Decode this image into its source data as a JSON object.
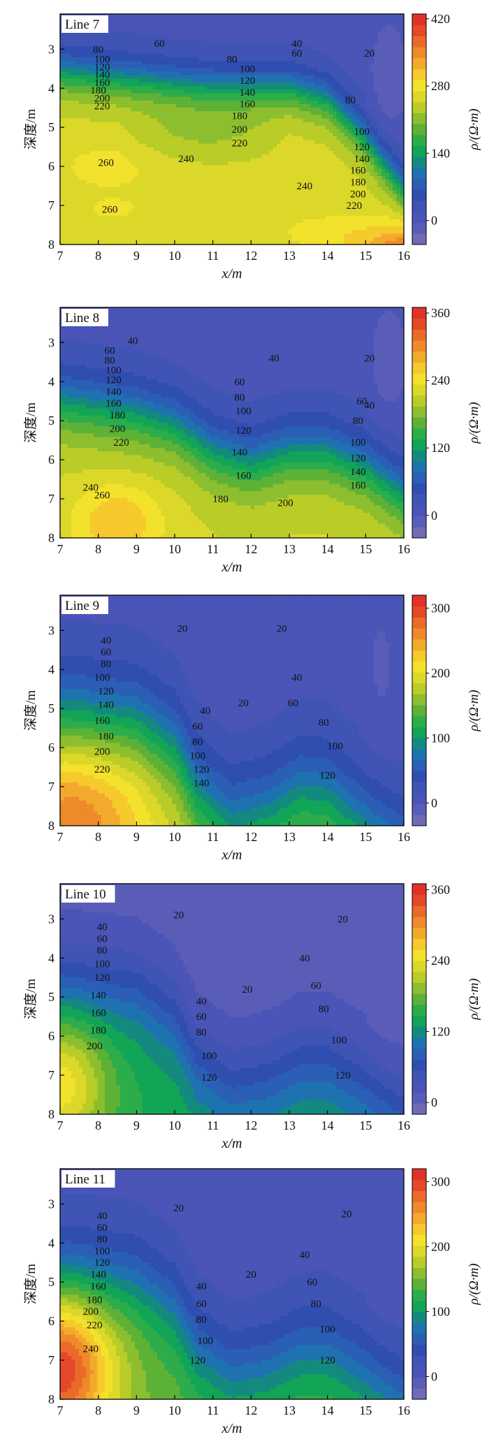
{
  "figure": {
    "colorscale": [
      "#6f6bb6",
      "#5a5db8",
      "#4a55b7",
      "#3f54b4",
      "#2f4eb0",
      "#2a5fb5",
      "#1f72b0",
      "#148a7f",
      "#12a457",
      "#2dac4b",
      "#5db236",
      "#8dbe2f",
      "#b9cc28",
      "#dcd82a",
      "#f3e22c",
      "#f6c92c",
      "#f3aa2c",
      "#ef8a2b",
      "#eb6a2a",
      "#e6482a",
      "#e03228"
    ]
  },
  "chart_data": [
    {
      "type": "contour",
      "title": "Line 7",
      "xlabel": "x/m",
      "ylabel": "深度/m",
      "colorbar_label": "ρ/(Ω·m)",
      "xlim": [
        7,
        16
      ],
      "ylim": [
        8,
        2.1
      ],
      "xticks": [
        "7",
        "8",
        "9",
        "10",
        "11",
        "12",
        "13",
        "14",
        "15",
        "16"
      ],
      "yticks": [
        "3",
        "4",
        "5",
        "6",
        "7",
        "8"
      ],
      "zrange": [
        -50,
        430
      ],
      "colorbar_ticks": [
        {
          "label": "0",
          "value": 0
        },
        {
          "label": "140",
          "value": 140
        },
        {
          "label": "280",
          "value": 280
        },
        {
          "label": "420",
          "value": 420
        }
      ],
      "contour_labels": [
        {
          "text": "80",
          "x": 8.0,
          "y": 3.0
        },
        {
          "text": "100",
          "x": 8.1,
          "y": 3.25
        },
        {
          "text": "120",
          "x": 8.1,
          "y": 3.45
        },
        {
          "text": "140",
          "x": 8.1,
          "y": 3.65
        },
        {
          "text": "160",
          "x": 8.1,
          "y": 3.85
        },
        {
          "text": "180",
          "x": 8.0,
          "y": 4.05
        },
        {
          "text": "200",
          "x": 8.1,
          "y": 4.25
        },
        {
          "text": "220",
          "x": 8.1,
          "y": 4.45
        },
        {
          "text": "60",
          "x": 9.6,
          "y": 2.85
        },
        {
          "text": "80",
          "x": 11.5,
          "y": 3.25
        },
        {
          "text": "100",
          "x": 11.9,
          "y": 3.5
        },
        {
          "text": "120",
          "x": 11.9,
          "y": 3.8
        },
        {
          "text": "140",
          "x": 11.9,
          "y": 4.1
        },
        {
          "text": "160",
          "x": 11.9,
          "y": 4.4
        },
        {
          "text": "180",
          "x": 11.7,
          "y": 4.7
        },
        {
          "text": "200",
          "x": 11.7,
          "y": 5.05
        },
        {
          "text": "220",
          "x": 11.7,
          "y": 5.4
        },
        {
          "text": "40",
          "x": 13.2,
          "y": 2.85
        },
        {
          "text": "60",
          "x": 13.2,
          "y": 3.1
        },
        {
          "text": "20",
          "x": 15.1,
          "y": 3.1
        },
        {
          "text": "80",
          "x": 14.6,
          "y": 4.3
        },
        {
          "text": "100",
          "x": 14.9,
          "y": 5.1
        },
        {
          "text": "120",
          "x": 14.9,
          "y": 5.5
        },
        {
          "text": "140",
          "x": 14.9,
          "y": 5.8
        },
        {
          "text": "160",
          "x": 14.8,
          "y": 6.1
        },
        {
          "text": "180",
          "x": 14.8,
          "y": 6.4
        },
        {
          "text": "200",
          "x": 14.8,
          "y": 6.7
        },
        {
          "text": "220",
          "x": 14.7,
          "y": 7.0
        },
        {
          "text": "260",
          "x": 8.2,
          "y": 5.9
        },
        {
          "text": "240",
          "x": 10.3,
          "y": 5.8
        },
        {
          "text": "240",
          "x": 13.4,
          "y": 6.5
        },
        {
          "text": "260",
          "x": 8.3,
          "y": 7.1
        }
      ]
    },
    {
      "type": "contour",
      "title": "Line 8",
      "xlabel": "x/m",
      "ylabel": "深度/m",
      "colorbar_label": "ρ/(Ω·m)",
      "xlim": [
        7,
        16
      ],
      "ylim": [
        8,
        2.1
      ],
      "xticks": [
        "7",
        "8",
        "9",
        "10",
        "11",
        "12",
        "13",
        "14",
        "15",
        "16"
      ],
      "yticks": [
        "3",
        "4",
        "5",
        "6",
        "7",
        "8"
      ],
      "zrange": [
        -40,
        370
      ],
      "colorbar_ticks": [
        {
          "label": "0",
          "value": 0
        },
        {
          "label": "120",
          "value": 120
        },
        {
          "label": "240",
          "value": 240
        },
        {
          "label": "360",
          "value": 360
        }
      ],
      "contour_labels": [
        {
          "text": "40",
          "x": 8.9,
          "y": 2.95
        },
        {
          "text": "60",
          "x": 8.3,
          "y": 3.2
        },
        {
          "text": "80",
          "x": 8.3,
          "y": 3.45
        },
        {
          "text": "100",
          "x": 8.4,
          "y": 3.7
        },
        {
          "text": "120",
          "x": 8.4,
          "y": 3.95
        },
        {
          "text": "140",
          "x": 8.4,
          "y": 4.25
        },
        {
          "text": "160",
          "x": 8.4,
          "y": 4.55
        },
        {
          "text": "180",
          "x": 8.5,
          "y": 4.85
        },
        {
          "text": "200",
          "x": 8.5,
          "y": 5.2
        },
        {
          "text": "220",
          "x": 8.6,
          "y": 5.55
        },
        {
          "text": "240",
          "x": 7.8,
          "y": 6.7
        },
        {
          "text": "260",
          "x": 8.1,
          "y": 6.9
        },
        {
          "text": "40",
          "x": 12.6,
          "y": 3.4
        },
        {
          "text": "60",
          "x": 11.7,
          "y": 4.0
        },
        {
          "text": "80",
          "x": 11.7,
          "y": 4.4
        },
        {
          "text": "100",
          "x": 11.8,
          "y": 4.75
        },
        {
          "text": "120",
          "x": 11.8,
          "y": 5.25
        },
        {
          "text": "140",
          "x": 11.7,
          "y": 5.8
        },
        {
          "text": "160",
          "x": 11.8,
          "y": 6.4
        },
        {
          "text": "180",
          "x": 11.2,
          "y": 7.0
        },
        {
          "text": "200",
          "x": 12.9,
          "y": 7.1
        },
        {
          "text": "20",
          "x": 15.1,
          "y": 3.4
        },
        {
          "text": "60",
          "x": 14.9,
          "y": 4.5
        },
        {
          "text": "40",
          "x": 15.1,
          "y": 4.6
        },
        {
          "text": "80",
          "x": 14.8,
          "y": 5.0
        },
        {
          "text": "100",
          "x": 14.8,
          "y": 5.55
        },
        {
          "text": "120",
          "x": 14.8,
          "y": 5.95
        },
        {
          "text": "140",
          "x": 14.8,
          "y": 6.3
        },
        {
          "text": "160",
          "x": 14.8,
          "y": 6.65
        }
      ]
    },
    {
      "type": "contour",
      "title": "Line 9",
      "xlabel": "x/m",
      "ylabel": "深度/m",
      "colorbar_label": "ρ/(Ω·m)",
      "xlim": [
        7,
        16
      ],
      "ylim": [
        8,
        2.1
      ],
      "xticks": [
        "7",
        "8",
        "9",
        "10",
        "11",
        "12",
        "13",
        "14",
        "15",
        "16"
      ],
      "yticks": [
        "3",
        "4",
        "5",
        "6",
        "7",
        "8"
      ],
      "zrange": [
        -35,
        320
      ],
      "colorbar_ticks": [
        {
          "label": "0",
          "value": 0
        },
        {
          "label": "100",
          "value": 100
        },
        {
          "label": "200",
          "value": 200
        },
        {
          "label": "300",
          "value": 300
        }
      ],
      "contour_labels": [
        {
          "text": "40",
          "x": 8.2,
          "y": 3.25
        },
        {
          "text": "60",
          "x": 8.2,
          "y": 3.55
        },
        {
          "text": "80",
          "x": 8.2,
          "y": 3.85
        },
        {
          "text": "100",
          "x": 8.1,
          "y": 4.2
        },
        {
          "text": "120",
          "x": 8.2,
          "y": 4.55
        },
        {
          "text": "140",
          "x": 8.2,
          "y": 4.9
        },
        {
          "text": "160",
          "x": 8.1,
          "y": 5.3
        },
        {
          "text": "180",
          "x": 8.2,
          "y": 5.7
        },
        {
          "text": "200",
          "x": 8.1,
          "y": 6.1
        },
        {
          "text": "220",
          "x": 8.1,
          "y": 6.55
        },
        {
          "text": "20",
          "x": 10.2,
          "y": 2.95
        },
        {
          "text": "20",
          "x": 12.8,
          "y": 2.95
        },
        {
          "text": "40",
          "x": 10.8,
          "y": 5.05
        },
        {
          "text": "60",
          "x": 10.6,
          "y": 5.45
        },
        {
          "text": "80",
          "x": 10.6,
          "y": 5.85
        },
        {
          "text": "100",
          "x": 10.6,
          "y": 6.2
        },
        {
          "text": "120",
          "x": 10.7,
          "y": 6.55
        },
        {
          "text": "140",
          "x": 10.7,
          "y": 6.9
        },
        {
          "text": "20",
          "x": 11.8,
          "y": 4.85
        },
        {
          "text": "40",
          "x": 13.2,
          "y": 4.2
        },
        {
          "text": "60",
          "x": 13.1,
          "y": 4.85
        },
        {
          "text": "80",
          "x": 13.9,
          "y": 5.35
        },
        {
          "text": "100",
          "x": 14.2,
          "y": 5.95
        },
        {
          "text": "120",
          "x": 14.0,
          "y": 6.7
        }
      ]
    },
    {
      "type": "contour",
      "title": "Line 10",
      "xlabel": "x/m",
      "ylabel": "深度/m",
      "colorbar_label": "ρ/(Ω·m)",
      "xlim": [
        7,
        16
      ],
      "ylim": [
        8,
        2.1
      ],
      "xticks": [
        "7",
        "8",
        "9",
        "10",
        "11",
        "12",
        "13",
        "14",
        "15",
        "16"
      ],
      "yticks": [
        "3",
        "4",
        "5",
        "6",
        "7",
        "8"
      ],
      "zrange": [
        -20,
        370
      ],
      "colorbar_ticks": [
        {
          "label": "0",
          "value": 0
        },
        {
          "label": "120",
          "value": 120
        },
        {
          "label": "240",
          "value": 240
        },
        {
          "label": "360",
          "value": 360
        }
      ],
      "contour_labels": [
        {
          "text": "40",
          "x": 8.1,
          "y": 3.2
        },
        {
          "text": "60",
          "x": 8.1,
          "y": 3.5
        },
        {
          "text": "80",
          "x": 8.1,
          "y": 3.8
        },
        {
          "text": "100",
          "x": 8.1,
          "y": 4.15
        },
        {
          "text": "120",
          "x": 8.1,
          "y": 4.5
        },
        {
          "text": "140",
          "x": 8.0,
          "y": 4.95
        },
        {
          "text": "160",
          "x": 8.0,
          "y": 5.4
        },
        {
          "text": "180",
          "x": 8.0,
          "y": 5.85
        },
        {
          "text": "200",
          "x": 7.9,
          "y": 6.25
        },
        {
          "text": "20",
          "x": 10.1,
          "y": 2.9
        },
        {
          "text": "20",
          "x": 14.4,
          "y": 3.0
        },
        {
          "text": "40",
          "x": 10.7,
          "y": 5.1
        },
        {
          "text": "60",
          "x": 10.7,
          "y": 5.5
        },
        {
          "text": "80",
          "x": 10.7,
          "y": 5.9
        },
        {
          "text": "100",
          "x": 10.9,
          "y": 6.5
        },
        {
          "text": "120",
          "x": 10.9,
          "y": 7.05
        },
        {
          "text": "20",
          "x": 11.9,
          "y": 4.8
        },
        {
          "text": "40",
          "x": 13.4,
          "y": 4.0
        },
        {
          "text": "60",
          "x": 13.7,
          "y": 4.7
        },
        {
          "text": "80",
          "x": 13.9,
          "y": 5.3
        },
        {
          "text": "100",
          "x": 14.3,
          "y": 6.1
        },
        {
          "text": "120",
          "x": 14.4,
          "y": 7.0
        }
      ]
    },
    {
      "type": "contour",
      "title": "Line 11",
      "xlabel": "x/m",
      "ylabel": "深度/m",
      "colorbar_label": "ρ/(Ω·m)",
      "xlim": [
        7,
        16
      ],
      "ylim": [
        8,
        2.1
      ],
      "xticks": [
        "7",
        "8",
        "9",
        "10",
        "11",
        "12",
        "13",
        "14",
        "15",
        "16"
      ],
      "yticks": [
        "3",
        "4",
        "5",
        "6",
        "7",
        "8"
      ],
      "zrange": [
        -35,
        320
      ],
      "colorbar_ticks": [
        {
          "label": "0",
          "value": 0
        },
        {
          "label": "100",
          "value": 100
        },
        {
          "label": "200",
          "value": 200
        },
        {
          "label": "300",
          "value": 300
        }
      ],
      "contour_labels": [
        {
          "text": "40",
          "x": 8.1,
          "y": 3.3
        },
        {
          "text": "60",
          "x": 8.1,
          "y": 3.6
        },
        {
          "text": "80",
          "x": 8.1,
          "y": 3.9
        },
        {
          "text": "100",
          "x": 8.1,
          "y": 4.2
        },
        {
          "text": "120",
          "x": 8.1,
          "y": 4.5
        },
        {
          "text": "140",
          "x": 8.0,
          "y": 4.8
        },
        {
          "text": "160",
          "x": 8.0,
          "y": 5.1
        },
        {
          "text": "180",
          "x": 7.9,
          "y": 5.45
        },
        {
          "text": "200",
          "x": 7.8,
          "y": 5.75
        },
        {
          "text": "220",
          "x": 7.9,
          "y": 6.1
        },
        {
          "text": "240",
          "x": 7.8,
          "y": 6.7
        },
        {
          "text": "20",
          "x": 10.1,
          "y": 3.1
        },
        {
          "text": "20",
          "x": 14.5,
          "y": 3.25
        },
        {
          "text": "40",
          "x": 10.7,
          "y": 5.1
        },
        {
          "text": "60",
          "x": 10.7,
          "y": 5.55
        },
        {
          "text": "80",
          "x": 10.7,
          "y": 5.95
        },
        {
          "text": "100",
          "x": 10.8,
          "y": 6.5
        },
        {
          "text": "120",
          "x": 10.6,
          "y": 7.0
        },
        {
          "text": "20",
          "x": 12.0,
          "y": 4.8
        },
        {
          "text": "40",
          "x": 13.4,
          "y": 4.3
        },
        {
          "text": "60",
          "x": 13.6,
          "y": 5.0
        },
        {
          "text": "80",
          "x": 13.7,
          "y": 5.55
        },
        {
          "text": "100",
          "x": 14.0,
          "y": 6.2
        },
        {
          "text": "120",
          "x": 14.0,
          "y": 7.0
        }
      ]
    }
  ]
}
